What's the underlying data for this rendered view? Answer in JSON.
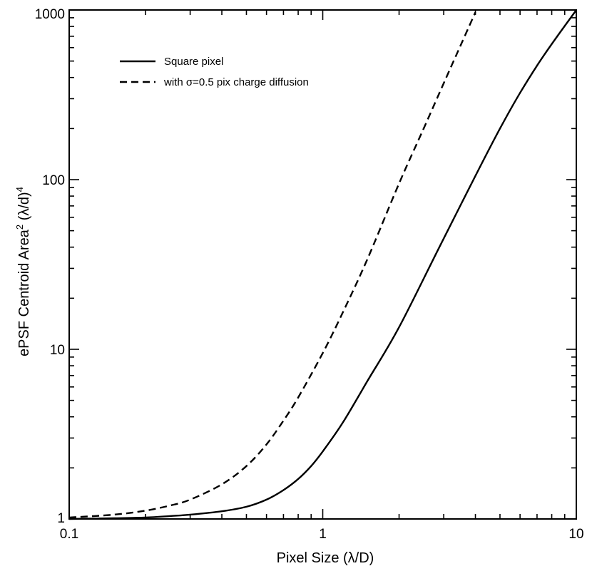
{
  "chart_data": {
    "type": "line",
    "xscale": "log",
    "yscale": "log",
    "xlim": [
      0.1,
      10
    ],
    "ylim": [
      1,
      1000
    ],
    "xlabel": "Pixel Size (λ/D)",
    "ylabel_main": "ePSF Centroid Area",
    "ylabel_sup1": "2",
    "ylabel_mid": " (λ/d)",
    "ylabel_sup2": "4",
    "xticks": [
      {
        "value": 0.1,
        "label": "0.1"
      },
      {
        "value": 1,
        "label": "1"
      },
      {
        "value": 10,
        "label": "10"
      }
    ],
    "yticks": [
      {
        "value": 1,
        "label": "1"
      },
      {
        "value": 10,
        "label": "10"
      },
      {
        "value": 100,
        "label": "100"
      },
      {
        "value": 1000,
        "label": "1000"
      }
    ],
    "grid": false,
    "legend_position": "top-left",
    "series": [
      {
        "name": "Square pixel",
        "dash": "solid",
        "x": [
          0.1,
          0.15,
          0.2,
          0.25,
          0.3,
          0.4,
          0.5,
          0.6,
          0.7,
          0.8,
          0.9,
          1.0,
          1.2,
          1.5,
          2.0,
          3.0,
          5.0,
          7.0,
          10.0
        ],
        "y": [
          1.0,
          1.01,
          1.02,
          1.04,
          1.06,
          1.11,
          1.18,
          1.3,
          1.48,
          1.72,
          2.05,
          2.5,
          3.7,
          6.5,
          13.5,
          45,
          200,
          470,
          1000
        ]
      },
      {
        "name": "with σ=0.5 pix charge diffusion",
        "dash": "dashed",
        "x": [
          0.1,
          0.15,
          0.2,
          0.25,
          0.3,
          0.4,
          0.5,
          0.6,
          0.7,
          0.8,
          1.0,
          1.2,
          1.5,
          2.0,
          2.5,
          3.0,
          3.5,
          4.0
        ],
        "y": [
          1.02,
          1.06,
          1.12,
          1.2,
          1.3,
          1.6,
          2.05,
          2.75,
          3.8,
          5.2,
          9.5,
          16.5,
          34,
          95,
          200,
          370,
          620,
          970
        ]
      }
    ]
  }
}
